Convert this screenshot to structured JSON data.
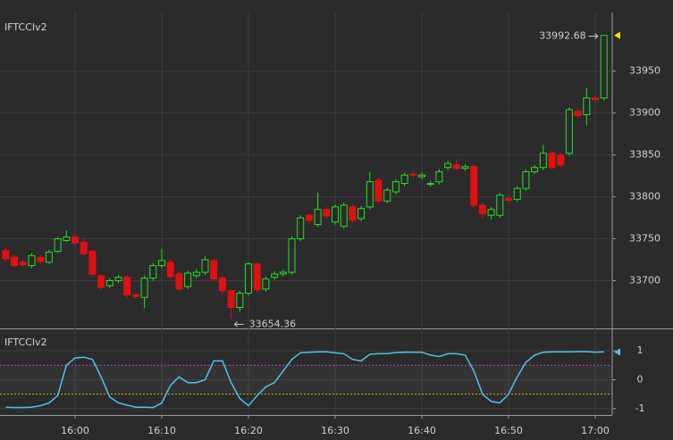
{
  "chart_data": [
    {
      "type": "candlestick",
      "title": "IFTCCIv2",
      "x": [
        "15:52",
        "15:53",
        "15:54",
        "15:55",
        "15:56",
        "15:57",
        "15:58",
        "15:59",
        "16:00",
        "16:01",
        "16:02",
        "16:03",
        "16:04",
        "16:05",
        "16:06",
        "16:07",
        "16:08",
        "16:09",
        "16:10",
        "16:11",
        "16:12",
        "16:13",
        "16:14",
        "16:15",
        "16:16",
        "16:17",
        "16:18",
        "16:19",
        "16:20",
        "16:21",
        "16:22",
        "16:23",
        "16:24",
        "16:25",
        "16:26",
        "16:27",
        "16:28",
        "16:29",
        "16:30",
        "16:31",
        "16:32",
        "16:33",
        "16:34",
        "16:35",
        "16:36",
        "16:37",
        "16:38",
        "16:39",
        "16:40",
        "16:41",
        "16:42",
        "16:43",
        "16:44",
        "16:45",
        "16:46",
        "16:47",
        "16:48",
        "16:49",
        "16:50",
        "16:51",
        "16:52",
        "16:53",
        "16:54",
        "16:55",
        "16:56",
        "16:57",
        "16:58",
        "16:59",
        "17:00",
        "17:01"
      ],
      "open": [
        33736,
        33728,
        33722,
        33718,
        33728,
        33722,
        33735,
        33748,
        33752,
        33746,
        33735,
        33706,
        33694,
        33700,
        33704,
        33683,
        33680,
        33703,
        33718,
        33722,
        33708,
        33693,
        33706,
        33710,
        33724,
        33703,
        33688,
        33668,
        33685,
        33720,
        33690,
        33704,
        33708,
        33710,
        33750,
        33778,
        33767,
        33785,
        33770,
        33765,
        33788,
        33774,
        33788,
        33820,
        33795,
        33806,
        33816,
        33827,
        33824,
        33815,
        33818,
        33835,
        33838,
        33834,
        33836,
        33790,
        33778,
        33778,
        33798,
        33797,
        33810,
        33830,
        33835,
        33852,
        33850,
        33852,
        33902,
        33898,
        33918,
        33918
      ],
      "high": [
        33740,
        33731,
        33725,
        33733,
        33731,
        33737,
        33752,
        33760,
        33756,
        33750,
        33737,
        33708,
        33703,
        33707,
        33706,
        33686,
        33706,
        33721,
        33738,
        33725,
        33711,
        33712,
        33714,
        33729,
        33727,
        33706,
        33690,
        33688,
        33722,
        33722,
        33705,
        33711,
        33713,
        33753,
        33778,
        33781,
        33805,
        33788,
        33791,
        33793,
        33791,
        33789,
        33830,
        33823,
        33811,
        33821,
        33829,
        33830,
        33829,
        33819,
        33833,
        33843,
        33845,
        33839,
        33839,
        33793,
        33788,
        33805,
        33801,
        33813,
        33833,
        33838,
        33862,
        33855,
        33853,
        33907,
        33905,
        33930,
        33921,
        33992.68
      ],
      "low": [
        33722,
        33716,
        33716,
        33715,
        33720,
        33720,
        33733,
        33746,
        33742,
        33729,
        33705,
        33689,
        33691,
        33697,
        33680,
        33678,
        33667,
        33700,
        33715,
        33702,
        33687,
        33690,
        33703,
        33707,
        33699,
        33684,
        33654.36,
        33663,
        33682,
        33686,
        33687,
        33701,
        33705,
        33707,
        33747,
        33769,
        33764,
        33774,
        33767,
        33762,
        33769,
        33771,
        33785,
        33792,
        33792,
        33803,
        33813,
        33823,
        33821,
        33812,
        33815,
        33832,
        33831,
        33831,
        33787,
        33775,
        33773,
        33775,
        33793,
        33794,
        33807,
        33827,
        33832,
        33832,
        33835,
        33849,
        33894,
        33885,
        33913,
        33915
      ],
      "close": [
        33726,
        33718,
        33719,
        33730,
        33723,
        33734,
        33750,
        33752,
        33745,
        33732,
        33708,
        33692,
        33700,
        33704,
        33683,
        33681,
        33703,
        33718,
        33724,
        33705,
        33690,
        33709,
        33710,
        33725,
        33702,
        33688,
        33668,
        33685,
        33720,
        33689,
        33702,
        33708,
        33710,
        33750,
        33775,
        33772,
        33785,
        33777,
        33788,
        33790,
        33772,
        33786,
        33818,
        33795,
        33808,
        33818,
        33826,
        33826,
        33826,
        33816,
        33830,
        33840,
        33834,
        33836,
        33790,
        33780,
        33785,
        33802,
        33796,
        33810,
        33830,
        33835,
        33852,
        33835,
        33838,
        33904,
        33897,
        33918,
        33916,
        33992.68
      ],
      "up_color": "#22e022",
      "down_color": "#e01010",
      "ylim": [
        33643,
        34020
      ],
      "yticks": [
        33700,
        33750,
        33800,
        33850,
        33900,
        33950
      ],
      "xticks": [
        "16:00",
        "16:10",
        "16:20",
        "16:30",
        "16:40",
        "16:50",
        "17:00"
      ],
      "grid": true
    },
    {
      "type": "line",
      "title": "IFTCCIv2",
      "x": [
        "15:52",
        "15:53",
        "15:54",
        "15:55",
        "15:56",
        "15:57",
        "15:58",
        "15:59",
        "16:00",
        "16:01",
        "16:02",
        "16:03",
        "16:04",
        "16:05",
        "16:06",
        "16:07",
        "16:08",
        "16:09",
        "16:10",
        "16:11",
        "16:12",
        "16:13",
        "16:14",
        "16:15",
        "16:16",
        "16:17",
        "16:18",
        "16:19",
        "16:20",
        "16:21",
        "16:22",
        "16:23",
        "16:24",
        "16:25",
        "16:26",
        "16:27",
        "16:28",
        "16:29",
        "16:30",
        "16:31",
        "16:32",
        "16:33",
        "16:34",
        "16:35",
        "16:36",
        "16:37",
        "16:38",
        "16:39",
        "16:40",
        "16:41",
        "16:42",
        "16:43",
        "16:44",
        "16:45",
        "16:46",
        "16:47",
        "16:48",
        "16:49",
        "16:50",
        "16:51",
        "16:52",
        "16:53",
        "16:54",
        "16:55",
        "16:56",
        "16:57",
        "16:58",
        "16:59",
        "17:00",
        "17:01"
      ],
      "values": [
        -0.95,
        -0.96,
        -0.96,
        -0.95,
        -0.9,
        -0.8,
        -0.55,
        0.5,
        0.75,
        0.78,
        0.7,
        0.1,
        -0.6,
        -0.8,
        -0.88,
        -0.95,
        -0.95,
        -0.96,
        -0.8,
        -0.2,
        0.1,
        -0.1,
        -0.1,
        0.0,
        0.65,
        0.65,
        -0.1,
        -0.65,
        -0.9,
        -0.55,
        -0.25,
        -0.1,
        0.3,
        0.7,
        0.93,
        0.95,
        0.96,
        0.96,
        0.93,
        0.9,
        0.7,
        0.65,
        0.88,
        0.9,
        0.9,
        0.94,
        0.95,
        0.95,
        0.95,
        0.85,
        0.8,
        0.9,
        0.9,
        0.85,
        0.3,
        -0.5,
        -0.75,
        -0.8,
        -0.5,
        0.1,
        0.6,
        0.85,
        0.95,
        0.96,
        0.96,
        0.96,
        0.97,
        0.97,
        0.95,
        0.96
      ],
      "color": "#4cc4f0",
      "levels": [
        0.5,
        -0.5
      ],
      "level_colors": [
        "#b048c0",
        "#c8b400"
      ],
      "ylim": [
        -1.22,
        1.71
      ],
      "yticks": [
        -1,
        0,
        1
      ],
      "grid": true
    }
  ]
}
